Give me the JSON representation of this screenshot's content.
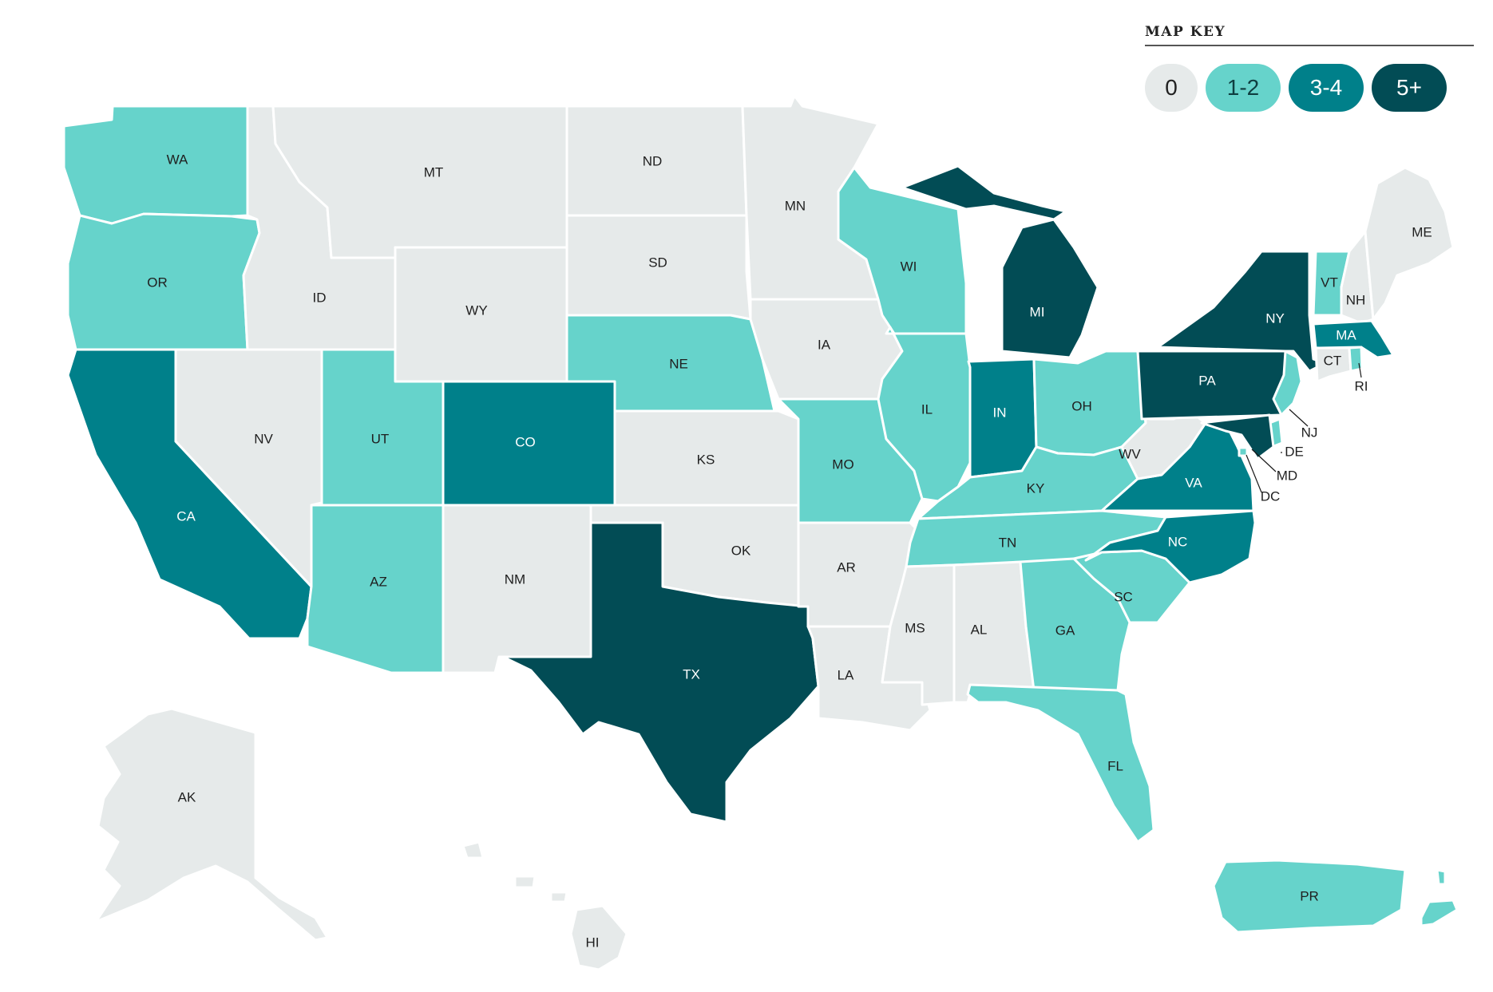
{
  "legend": {
    "title": "MAP KEY",
    "items": [
      {
        "label": "0",
        "color": "#e6eaea",
        "text_color": "#222222"
      },
      {
        "label": "1-2",
        "color": "#66d3cb",
        "text_color": "#0f3e40"
      },
      {
        "label": "3-4",
        "color": "#00808a",
        "text_color": "#ffffff"
      },
      {
        "label": "5+",
        "color": "#024c55",
        "text_color": "#ffffff"
      }
    ]
  },
  "states": [
    {
      "abbr": "WA",
      "level": 1
    },
    {
      "abbr": "OR",
      "level": 1
    },
    {
      "abbr": "CA",
      "level": 2
    },
    {
      "abbr": "NV",
      "level": 0
    },
    {
      "abbr": "ID",
      "level": 0
    },
    {
      "abbr": "MT",
      "level": 0
    },
    {
      "abbr": "WY",
      "level": 0
    },
    {
      "abbr": "UT",
      "level": 1
    },
    {
      "abbr": "AZ",
      "level": 1
    },
    {
      "abbr": "CO",
      "level": 2
    },
    {
      "abbr": "NM",
      "level": 0
    },
    {
      "abbr": "ND",
      "level": 0
    },
    {
      "abbr": "SD",
      "level": 0
    },
    {
      "abbr": "NE",
      "level": 1
    },
    {
      "abbr": "KS",
      "level": 0
    },
    {
      "abbr": "OK",
      "level": 0
    },
    {
      "abbr": "TX",
      "level": 3
    },
    {
      "abbr": "MN",
      "level": 0
    },
    {
      "abbr": "IA",
      "level": 0
    },
    {
      "abbr": "MO",
      "level": 1
    },
    {
      "abbr": "AR",
      "level": 0
    },
    {
      "abbr": "LA",
      "level": 0
    },
    {
      "abbr": "WI",
      "level": 1
    },
    {
      "abbr": "IL",
      "level": 1
    },
    {
      "abbr": "MI",
      "level": 3
    },
    {
      "abbr": "IN",
      "level": 2
    },
    {
      "abbr": "OH",
      "level": 1
    },
    {
      "abbr": "KY",
      "level": 1
    },
    {
      "abbr": "TN",
      "level": 1
    },
    {
      "abbr": "MS",
      "level": 0
    },
    {
      "abbr": "AL",
      "level": 0
    },
    {
      "abbr": "GA",
      "level": 1
    },
    {
      "abbr": "FL",
      "level": 1
    },
    {
      "abbr": "SC",
      "level": 1
    },
    {
      "abbr": "NC",
      "level": 2
    },
    {
      "abbr": "VA",
      "level": 2
    },
    {
      "abbr": "WV",
      "level": 0
    },
    {
      "abbr": "PA",
      "level": 3
    },
    {
      "abbr": "NY",
      "level": 3
    },
    {
      "abbr": "VT",
      "level": 1
    },
    {
      "abbr": "NH",
      "level": 0
    },
    {
      "abbr": "ME",
      "level": 0
    },
    {
      "abbr": "MA",
      "level": 2
    },
    {
      "abbr": "CT",
      "level": 0
    },
    {
      "abbr": "RI",
      "level": 1
    },
    {
      "abbr": "NJ",
      "level": 1
    },
    {
      "abbr": "DE",
      "level": 1
    },
    {
      "abbr": "MD",
      "level": 3
    },
    {
      "abbr": "DC",
      "level": 1
    },
    {
      "abbr": "AK",
      "level": 0
    },
    {
      "abbr": "HI",
      "level": 0
    },
    {
      "abbr": "PR",
      "level": 1
    }
  ]
}
